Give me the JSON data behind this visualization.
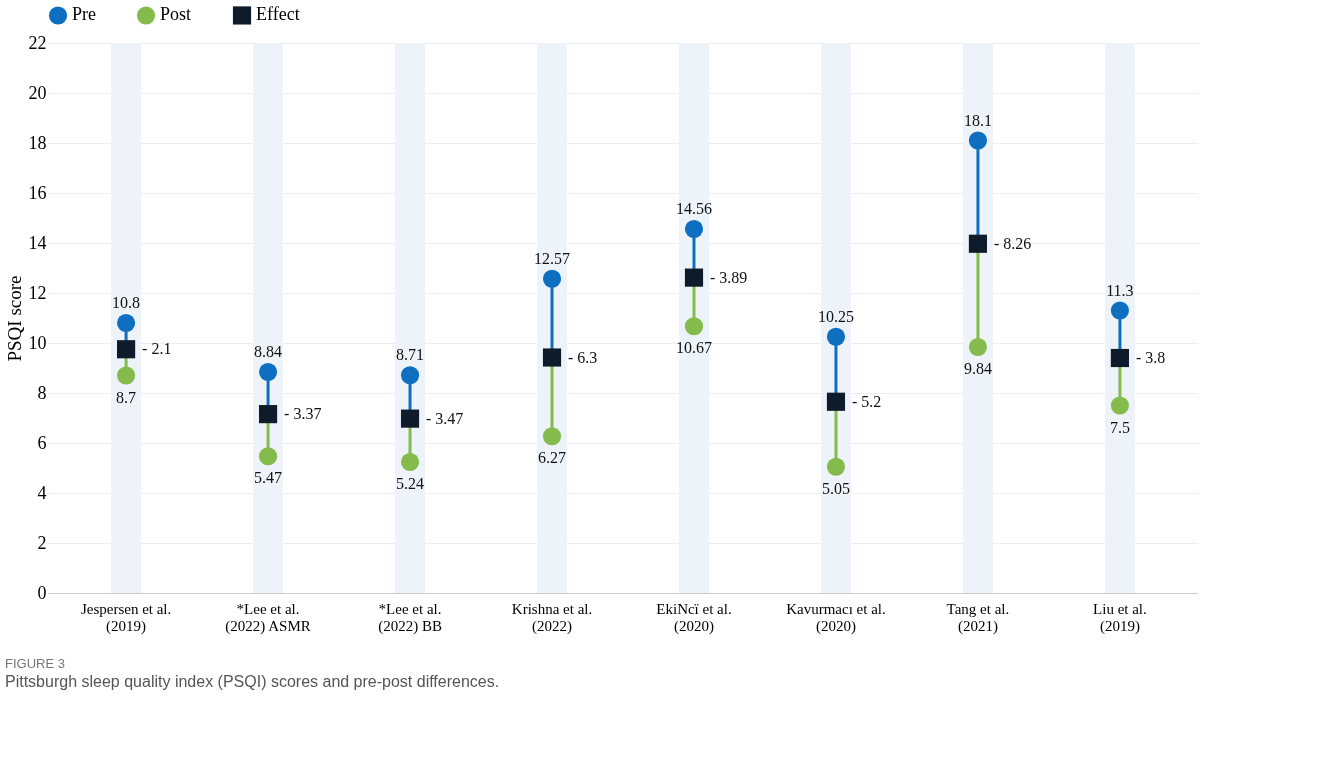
{
  "chart_data": {
    "type": "scatter",
    "categories": [
      "Jespersen et al.\n(2019)",
      "*Lee et al.\n(2022)   ASMR",
      "*Lee et al.\n(2022)   BB",
      "Krishna et al.\n(2022)",
      "EkiNcï et al.\n(2020)",
      "Kavurmacı et al.\n(2020)",
      "Tang et al.\n(2021)",
      "Liu et al.\n(2019)"
    ],
    "series": [
      {
        "name": "Pre",
        "color": "#0e6fc1",
        "marker": "circle",
        "values": [
          10.8,
          8.84,
          8.71,
          12.57,
          14.56,
          10.25,
          18.1,
          11.3
        ],
        "value_labels": [
          "10.8",
          "8.84",
          "8.71",
          "12.57",
          "14.56",
          "10.25",
          "18.1",
          "11.3"
        ]
      },
      {
        "name": "Post",
        "color": "#84bb4c",
        "marker": "circle",
        "values": [
          8.7,
          5.47,
          5.24,
          6.27,
          10.67,
          5.05,
          9.84,
          7.5
        ],
        "value_labels": [
          "8.7",
          "5.47",
          "5.24",
          "6.27",
          "10.67",
          "5.05",
          "9.84",
          "7.5"
        ]
      },
      {
        "name": "Effect",
        "color": "#0d1b2a",
        "marker": "square",
        "values": [
          9.75,
          7.155,
          6.975,
          9.42,
          12.615,
          7.65,
          13.97,
          9.4
        ]
      }
    ],
    "ylabel": "PSQI score",
    "ylim": [
      0,
      22
    ],
    "yticks": [
      0,
      2,
      4,
      6,
      8,
      10,
      12,
      14,
      16,
      18,
      20,
      22
    ],
    "grid": "y",
    "legend": "top",
    "bands": [
      {
        "axis": "x",
        "from": "Jespersen et al.\n(2019)",
        "to": "Jespersen et al.\n(2019)",
        "color": "#edf3f9"
      },
      {
        "axis": "x",
        "from": "*Lee et al.\n(2022)   ASMR",
        "to": "*Lee et al.\n(2022)   ASMR",
        "color": "#edf3f9"
      },
      {
        "axis": "x",
        "from": "*Lee et al.\n(2022)   BB",
        "to": "*Lee et al.\n(2022)   BB",
        "color": "#edf3f9"
      },
      {
        "axis": "x",
        "from": "Krishna et al.\n(2022)",
        "to": "Krishna et al.\n(2022)",
        "color": "#edf3f9"
      },
      {
        "axis": "x",
        "from": "EkiNcï et al.\n(2020)",
        "to": "EkiNcï et al.\n(2020)",
        "color": "#edf3f9"
      },
      {
        "axis": "x",
        "from": "Kavurmacı et al.\n(2020)",
        "to": "Kavurmacı et al.\n(2020)",
        "color": "#edf3f9"
      },
      {
        "axis": "x",
        "from": "Tang et al.\n(2021)",
        "to": "Tang et al.\n(2021)",
        "color": "#edf3f9"
      },
      {
        "axis": "x",
        "from": "Liu et al.\n(2019)",
        "to": "Liu et al.\n(2019)",
        "color": "#edf3f9"
      }
    ],
    "annotations": [
      {
        "text": "- 2.1",
        "x": "Jespersen et al.\n(2019)",
        "y": 9.75
      },
      {
        "text": "- 3.37",
        "x": "*Lee et al.\n(2022)   ASMR",
        "y": 7.15
      },
      {
        "text": "- 3.47",
        "x": "*Lee et al.\n(2022)   BB",
        "y": 6.98
      },
      {
        "text": "- 6.3",
        "x": "Krishna et al.\n(2022)",
        "y": 9.42
      },
      {
        "text": "- 3.89",
        "x": "EkiNcï et al.\n(2020)",
        "y": 12.62
      },
      {
        "text": "- 5.2",
        "x": "Kavurmacı et al.\n(2020)",
        "y": 7.65
      },
      {
        "text": "- 8.26",
        "x": "Tang et al.\n(2021)",
        "y": 13.97
      },
      {
        "text": "- 3.8",
        "x": "Liu et al.\n(2019)",
        "y": 9.4
      },
      "FIGURE 3",
      "Pittsburgh sleep quality index (PSQI) scores and pre-post differences."
    ]
  }
}
